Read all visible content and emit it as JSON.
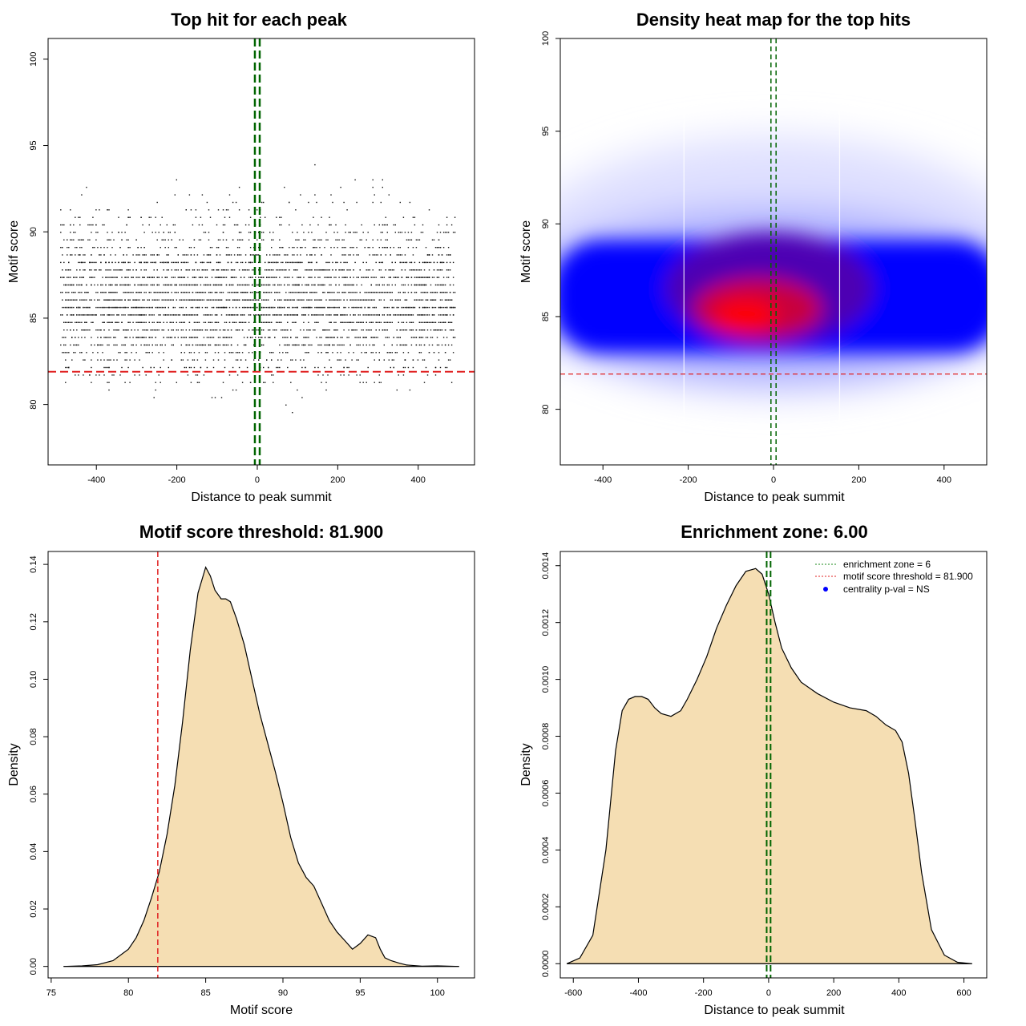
{
  "chart_data": [
    {
      "type": "scatter",
      "title": "Top hit for each peak",
      "xlabel": "Distance to peak summit",
      "ylabel": "Motif score",
      "xlim": [
        -520,
        540
      ],
      "ylim": [
        76.5,
        101.2
      ],
      "xticks": [
        -400,
        -200,
        0,
        200,
        400
      ],
      "yticks": [
        80,
        85,
        90,
        95,
        100
      ],
      "n_points": 4200,
      "score_threshold": 81.9,
      "enrichment_zone": [
        -6,
        6
      ],
      "threshold_color": "#e02020",
      "zone_color": "#006400"
    },
    {
      "type": "heatmap",
      "title": "Density heat map for the top hits",
      "xlabel": "Distance to peak summit",
      "ylabel": "Motif score",
      "xlim": [
        -500,
        500
      ],
      "ylim": [
        77,
        100
      ],
      "xticks": [
        -400,
        -200,
        0,
        200,
        400
      ],
      "yticks": [
        80,
        85,
        90,
        95,
        100
      ],
      "hotspot": {
        "x": -50,
        "y": 85
      },
      "score_threshold": 81.9,
      "enrichment_zone": [
        -6,
        6
      ],
      "low_color": "#ffffff",
      "mid_color": "#0000ff",
      "high_color": "#ff0000"
    },
    {
      "type": "area",
      "title": "Motif score threshold: 81.900",
      "xlabel": "Motif score",
      "ylabel": "Density",
      "xlim": [
        74.8,
        102.4
      ],
      "ylim": [
        -0.004,
        0.1445
      ],
      "xticks": [
        75,
        80,
        85,
        90,
        95,
        100
      ],
      "yticks": [
        "0.00",
        "0.02",
        "0.04",
        "0.06",
        "0.08",
        "0.10",
        "0.12",
        "0.14"
      ],
      "x": [
        75.8,
        77,
        78,
        79,
        80,
        80.5,
        81,
        81.5,
        82,
        82.5,
        83,
        83.5,
        84,
        84.5,
        85,
        85.3,
        85.6,
        86,
        86.3,
        86.6,
        87,
        87.5,
        88,
        88.5,
        89,
        89.5,
        90,
        90.5,
        91,
        91.5,
        92,
        92.5,
        93,
        93.5,
        94,
        94.5,
        95,
        95.5,
        96,
        96.3,
        96.6,
        97,
        97.5,
        98,
        99,
        100,
        101.4
      ],
      "values": [
        0,
        0.0002,
        0.0006,
        0.002,
        0.006,
        0.01,
        0.016,
        0.024,
        0.033,
        0.046,
        0.063,
        0.085,
        0.11,
        0.13,
        0.139,
        0.136,
        0.131,
        0.128,
        0.128,
        0.127,
        0.121,
        0.112,
        0.1,
        0.088,
        0.078,
        0.068,
        0.057,
        0.045,
        0.036,
        0.031,
        0.028,
        0.022,
        0.016,
        0.012,
        0.009,
        0.006,
        0.008,
        0.011,
        0.01,
        0.006,
        0.003,
        0.002,
        0.0012,
        0.0005,
        0.0001,
        0.0002,
        0
      ],
      "threshold": 81.9,
      "fill_color": "#f5deb3",
      "threshold_color": "#e02020"
    },
    {
      "type": "area",
      "title": "Enrichment zone: 6.00",
      "xlabel": "Distance to peak summit",
      "ylabel": "Density",
      "xlim": [
        -640,
        670
      ],
      "ylim": [
        -5e-05,
        0.00145
      ],
      "xticks": [
        -600,
        -400,
        -200,
        0,
        200,
        400,
        600
      ],
      "yticks": [
        "0.0000",
        "0.0002",
        "0.0004",
        "0.0006",
        "0.0008",
        "0.0010",
        "0.0012",
        "0.0014"
      ],
      "x": [
        -620,
        -580,
        -540,
        -500,
        -470,
        -450,
        -430,
        -410,
        -390,
        -370,
        -350,
        -330,
        -300,
        -270,
        -250,
        -220,
        -190,
        -160,
        -130,
        -100,
        -70,
        -40,
        -20,
        0,
        20,
        40,
        70,
        100,
        150,
        200,
        250,
        300,
        330,
        360,
        390,
        410,
        430,
        450,
        470,
        500,
        540,
        580,
        625
      ],
      "values": [
        0,
        2e-05,
        0.0001,
        0.0004,
        0.00075,
        0.00089,
        0.00093,
        0.00094,
        0.00094,
        0.00093,
        0.0009,
        0.00088,
        0.00087,
        0.00089,
        0.00093,
        0.001,
        0.00108,
        0.00118,
        0.00126,
        0.00133,
        0.00138,
        0.00139,
        0.00137,
        0.0013,
        0.0012,
        0.00111,
        0.00104,
        0.00099,
        0.00095,
        0.00092,
        0.0009,
        0.00089,
        0.00087,
        0.00084,
        0.00082,
        0.00078,
        0.00067,
        0.0005,
        0.00032,
        0.00012,
        3e-05,
        5e-06,
        0
      ],
      "zone": [
        -6,
        6
      ],
      "fill_color": "#f5deb3",
      "zone_color": "#006400",
      "legend": [
        "enrichment zone = 6",
        "motif score threshold = 81.900",
        "centrality p-val = NS"
      ],
      "legend_position": "top-right"
    }
  ]
}
